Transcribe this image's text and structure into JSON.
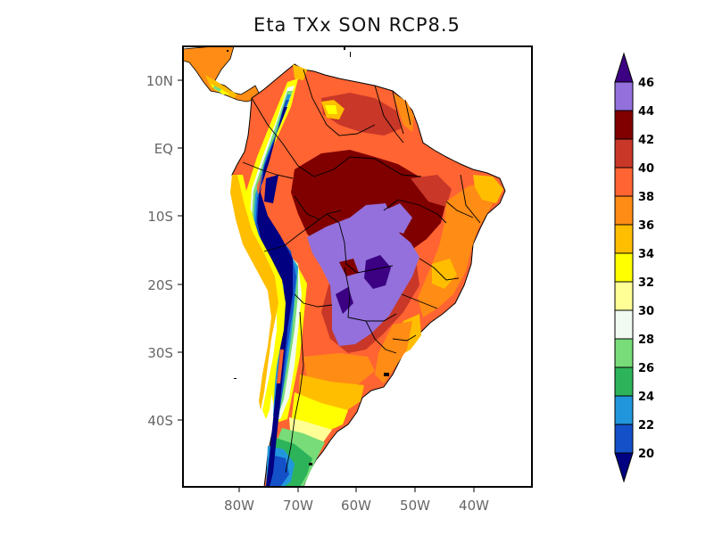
{
  "title": "Eta TXx SON RCP8.5",
  "map": {
    "lat_ticks": [
      "10N",
      "EQ",
      "10S",
      "20S",
      "30S",
      "40S"
    ],
    "lon_ticks": [
      "80W",
      "70W",
      "60W",
      "50W",
      "40W"
    ],
    "region": "South America"
  },
  "colorbar": {
    "levels": [
      "20",
      "22",
      "24",
      "26",
      "28",
      "30",
      "32",
      "34",
      "36",
      "38",
      "40",
      "42",
      "44",
      "46"
    ],
    "colors": [
      "#000080",
      "#1450c8",
      "#2196dc",
      "#2db45a",
      "#78dc78",
      "#f0faf0",
      "#ffff96",
      "#ffff00",
      "#ffbe00",
      "#ff8c14",
      "#ff6432",
      "#c83728",
      "#800000",
      "#9370db",
      "#3c0082"
    ],
    "extend": "both"
  }
}
